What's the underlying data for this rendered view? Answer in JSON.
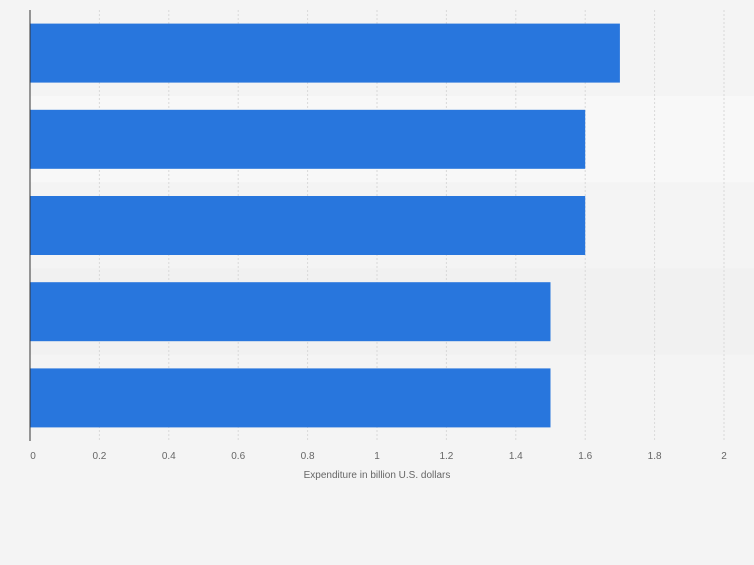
{
  "chart_data": {
    "type": "bar",
    "orientation": "horizontal",
    "categories": [
      "",
      "",
      "",
      "",
      ""
    ],
    "values": [
      1.7,
      1.6,
      1.6,
      1.5,
      1.5
    ],
    "title": "",
    "xlabel": "Expenditure in billion U.S. dollars",
    "ylabel": "",
    "xlim": [
      0,
      2
    ],
    "xticks": [
      0,
      0.2,
      0.4,
      0.6,
      0.8,
      1,
      1.2,
      1.4,
      1.6,
      1.8,
      2
    ],
    "tick_labels": [
      "0",
      "0.2",
      "0.4",
      "0.6",
      "0.8",
      "1",
      "1.2",
      "1.4",
      "1.6",
      "1.8",
      "2"
    ],
    "grid": "vertical dashed",
    "legend": "none"
  },
  "colors": {
    "background": "#f4f4f4",
    "bar": "#2876dd",
    "band_light": "#f8f8f8",
    "band_dark": "#f1f1f1",
    "grid": "#d9d9d9",
    "axis": "#333333",
    "tick_text": "#666666"
  }
}
